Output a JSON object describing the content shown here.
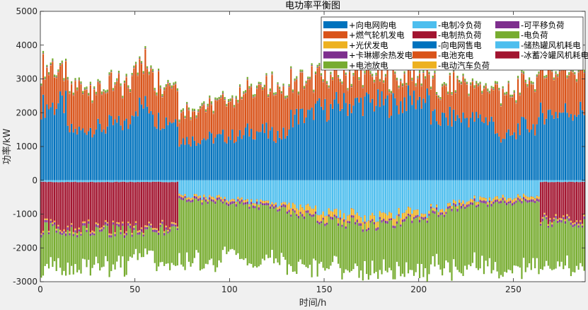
{
  "chart_data": {
    "type": "bar",
    "stacked": true,
    "title": "电功率平衡图",
    "xlabel": "时间/h",
    "ylabel": "功率/kW",
    "xlim": [
      0,
      288
    ],
    "ylim": [
      -3000,
      5000
    ],
    "xticks": [
      0,
      50,
      100,
      150,
      200,
      250
    ],
    "yticks": [
      -3000,
      -2000,
      -1000,
      0,
      1000,
      2000,
      3000,
      4000,
      5000
    ],
    "grid": false,
    "legend_position": "top-right",
    "legend": [
      {
        "label": "+向电网购电",
        "color": "#0072BD"
      },
      {
        "label": "+燃气轮机发电",
        "color": "#D95319"
      },
      {
        "label": "+光伏发电",
        "color": "#EDB120"
      },
      {
        "label": "+卡琳娜余热发电",
        "color": "#7E2F8E"
      },
      {
        "label": "+电池放电",
        "color": "#77AC30"
      },
      {
        "label": "-电制冷负荷",
        "color": "#4DBEEE"
      },
      {
        "label": "-电制热负荷",
        "color": "#A2142F"
      },
      {
        "label": "-向电网售电",
        "color": "#0072BD"
      },
      {
        "label": "-电池充电",
        "color": "#D95319"
      },
      {
        "label": "-电动汽车负荷",
        "color": "#EDB120"
      },
      {
        "label": "-可平移负荷",
        "color": "#7E2F8E"
      },
      {
        "label": "-电负荷",
        "color": "#77AC30"
      },
      {
        "label": "-储热罐风机耗电",
        "color": "#4DBEEE"
      },
      {
        "label": "-冰蓄冷罐风机耗电",
        "color": "#A2142F"
      }
    ],
    "n_points": 288,
    "series": [
      {
        "name": "+向电网购电",
        "color": "#0072BD",
        "segments": [
          [
            0,
            8,
            2200
          ],
          [
            8,
            14,
            2250
          ],
          [
            14,
            24,
            1450
          ],
          [
            24,
            36,
            1550
          ],
          [
            36,
            48,
            1650
          ],
          [
            48,
            60,
            2200
          ],
          [
            60,
            73,
            1800
          ],
          [
            73,
            84,
            1200
          ],
          [
            84,
            96,
            1250
          ],
          [
            96,
            108,
            1300
          ],
          [
            108,
            120,
            1450
          ],
          [
            120,
            132,
            1350
          ],
          [
            132,
            144,
            1900
          ],
          [
            144,
            156,
            2100
          ],
          [
            156,
            168,
            2250
          ],
          [
            168,
            180,
            2300
          ],
          [
            180,
            192,
            2250
          ],
          [
            192,
            206,
            2400
          ],
          [
            206,
            216,
            1800
          ],
          [
            216,
            228,
            1850
          ],
          [
            228,
            240,
            1800
          ],
          [
            240,
            252,
            1300
          ],
          [
            252,
            264,
            1600
          ],
          [
            264,
            276,
            2000
          ],
          [
            276,
            288,
            2050
          ]
        ]
      },
      {
        "name": "+燃气轮机发电",
        "color": "#D95319",
        "segments": [
          [
            0,
            8,
            1100
          ],
          [
            8,
            14,
            900
          ],
          [
            14,
            24,
            1200
          ],
          [
            24,
            36,
            1150
          ],
          [
            36,
            48,
            1100
          ],
          [
            48,
            60,
            1200
          ],
          [
            60,
            73,
            1050
          ],
          [
            73,
            84,
            850
          ],
          [
            84,
            96,
            950
          ],
          [
            96,
            108,
            1100
          ],
          [
            108,
            120,
            1200
          ],
          [
            120,
            132,
            1300
          ],
          [
            132,
            144,
            1050
          ],
          [
            144,
            156,
            950
          ],
          [
            156,
            168,
            850
          ],
          [
            168,
            180,
            750
          ],
          [
            180,
            192,
            700
          ],
          [
            192,
            206,
            650
          ],
          [
            206,
            216,
            900
          ],
          [
            216,
            228,
            950
          ],
          [
            228,
            240,
            900
          ],
          [
            240,
            252,
            1250
          ],
          [
            252,
            264,
            1300
          ],
          [
            264,
            276,
            1300
          ],
          [
            276,
            288,
            1200
          ]
        ]
      },
      {
        "name": "+光伏发电",
        "color": "#EDB120",
        "segments": [
          [
            0,
            288,
            15
          ]
        ]
      },
      {
        "name": "+卡琳娜余热发电",
        "color": "#7E2F8E",
        "segments": [
          [
            0,
            288,
            20
          ]
        ]
      },
      {
        "name": "+电池放电",
        "color": "#77AC30",
        "segments": [
          [
            0,
            288,
            60
          ]
        ]
      },
      {
        "name": "-电制冷负荷",
        "color": "#4DBEEE",
        "segments": [
          [
            0,
            73,
            -50
          ],
          [
            73,
            84,
            -450
          ],
          [
            84,
            96,
            -500
          ],
          [
            96,
            108,
            -550
          ],
          [
            108,
            120,
            -650
          ],
          [
            120,
            132,
            -700
          ],
          [
            132,
            144,
            -800
          ],
          [
            144,
            156,
            -900
          ],
          [
            156,
            168,
            -1000
          ],
          [
            168,
            180,
            -1100
          ],
          [
            180,
            192,
            -1000
          ],
          [
            192,
            206,
            -950
          ],
          [
            206,
            216,
            -800
          ],
          [
            216,
            228,
            -650
          ],
          [
            228,
            240,
            -550
          ],
          [
            240,
            252,
            -500
          ],
          [
            252,
            264,
            -450
          ],
          [
            264,
            288,
            -50
          ]
        ]
      },
      {
        "name": "-电制热负荷",
        "color": "#A2142F",
        "segments": [
          [
            0,
            73,
            -1300
          ],
          [
            73,
            264,
            0
          ],
          [
            264,
            288,
            -1100
          ]
        ]
      },
      {
        "name": "-电池充电",
        "color": "#D95319",
        "segments": [
          [
            0,
            288,
            -10
          ]
        ]
      },
      {
        "name": "-电动汽车负荷",
        "color": "#EDB120",
        "segments": [
          [
            0,
            73,
            -40
          ],
          [
            73,
            130,
            -60
          ],
          [
            130,
            200,
            -180
          ],
          [
            200,
            264,
            -80
          ],
          [
            264,
            288,
            -40
          ]
        ]
      },
      {
        "name": "-可平移负荷",
        "color": "#7E2F8E",
        "segments": [
          [
            0,
            288,
            -70
          ]
        ]
      },
      {
        "name": "-电负荷",
        "color": "#77AC30",
        "segments": [
          [
            0,
            8,
            -1100
          ],
          [
            8,
            24,
            -1050
          ],
          [
            24,
            48,
            -1000
          ],
          [
            48,
            60,
            -650
          ],
          [
            60,
            73,
            -1000
          ],
          [
            73,
            96,
            -1800
          ],
          [
            96,
            120,
            -1600
          ],
          [
            120,
            144,
            -1550
          ],
          [
            144,
            168,
            -1350
          ],
          [
            168,
            192,
            -1350
          ],
          [
            192,
            216,
            -1550
          ],
          [
            216,
            240,
            -1800
          ],
          [
            240,
            264,
            -1950
          ],
          [
            264,
            288,
            -1300
          ]
        ]
      }
    ]
  }
}
